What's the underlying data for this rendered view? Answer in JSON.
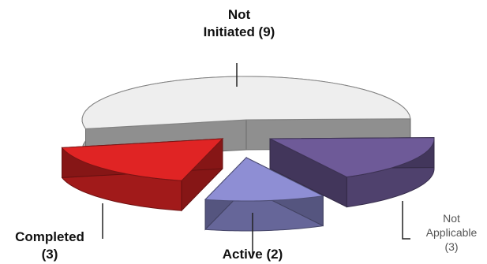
{
  "chart_data": {
    "type": "pie",
    "style": "3d-exploded",
    "categories": [
      "Not Initiated",
      "Active",
      "Not Applicable",
      "Completed"
    ],
    "values": [
      9,
      2,
      3,
      3
    ],
    "labels": [
      {
        "line1": "Not",
        "line2": "Initiated (9)"
      },
      {
        "line1": "Active (2)",
        "line2": ""
      },
      {
        "line1": "Not",
        "line2": "Applicable",
        "line3": "(3)"
      },
      {
        "line1": "Completed",
        "line2": "(3)"
      }
    ],
    "colors": {
      "Not Initiated": "#eeeeee",
      "Active": "#8e8ed4",
      "Not Applicable": "#6e5a98",
      "Completed": "#e02424"
    },
    "title": "",
    "legend": "none"
  }
}
